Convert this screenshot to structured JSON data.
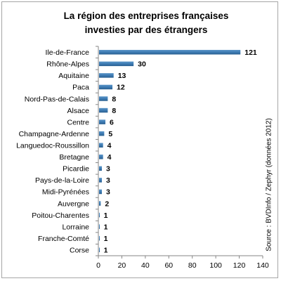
{
  "chart_data": {
    "type": "bar",
    "orientation": "horizontal",
    "title_line1": "La région des entreprises françaises",
    "title_line2": "investies par des étrangers",
    "source": "Source : BVDInfo / Zephyr (données 2012)",
    "categories": [
      "Ile-de-France",
      "Rhône-Alpes",
      "Aquitaine",
      "Paca",
      "Nord-Pas-de-Calais",
      "Alsace",
      "Centre",
      "Champagne-Ardenne",
      "Languedoc-Roussillon",
      "Bretagne",
      "Picardie",
      "Pays-de-la-Loire",
      "Midi-Pyrénées",
      "Auvergne",
      "Poitou-Charentes",
      "Lorraine",
      "Franche-Comté",
      "Corse"
    ],
    "values": [
      121,
      30,
      13,
      12,
      8,
      8,
      6,
      5,
      4,
      4,
      3,
      3,
      3,
      2,
      1,
      1,
      1,
      1
    ],
    "xlim": [
      0,
      140
    ],
    "xticks": [
      0,
      20,
      40,
      60,
      80,
      100,
      120,
      140
    ],
    "bar_color": "#3d7bb3",
    "grid": false,
    "legend": "none"
  }
}
